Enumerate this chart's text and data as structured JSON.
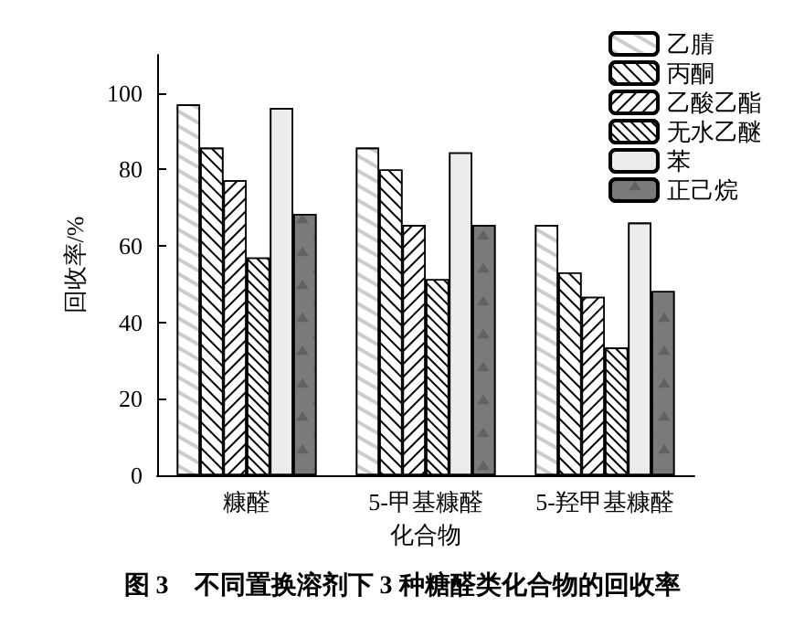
{
  "chart_data": {
    "type": "bar",
    "title": "图 3　不同置换溶剂下 3 种糖醛类化合物的回收率",
    "xlabel": "化合物",
    "ylabel": "回收率/%",
    "categories": [
      "糠醛",
      "5-甲基糠醛",
      "5-羟甲基糠醛"
    ],
    "series": [
      {
        "name": "乙腈",
        "color": "#ffffff",
        "values": [
          97,
          85.7,
          65.5
        ]
      },
      {
        "name": "丙酮",
        "color": "#ffffff",
        "values": [
          85.7,
          80,
          53.1
        ]
      },
      {
        "name": "乙酸乙酯",
        "color": "#ffffff",
        "values": [
          77.2,
          65.5,
          46.7
        ]
      },
      {
        "name": "无水乙醚",
        "color": "#ffffff",
        "values": [
          57,
          51.3,
          33.4
        ]
      },
      {
        "name": "苯",
        "color": "#ececec",
        "values": [
          96.1,
          84.5,
          66.1
        ]
      },
      {
        "name": "正己烷",
        "color": "#7a7a7a",
        "values": [
          68.4,
          65.5,
          48.2
        ]
      }
    ],
    "ylim": [
      0,
      110
    ],
    "yticks": [
      0,
      20,
      40,
      60,
      80,
      100
    ],
    "grid": false,
    "legend": "top right"
  }
}
